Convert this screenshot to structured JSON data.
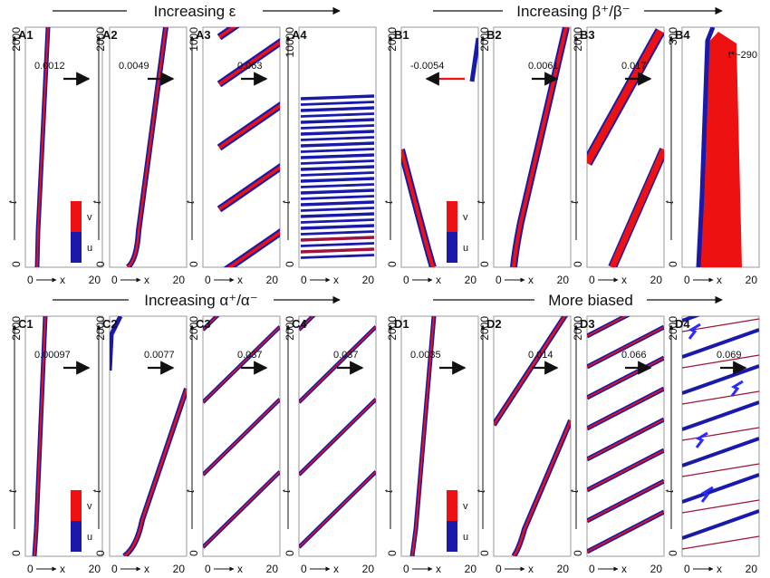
{
  "group_titles": {
    "A": "Increasing ε",
    "B": "Increasing β⁺/β⁻",
    "C": "Increasing α⁺/α⁻",
    "D": "More biased"
  },
  "axis": {
    "xlabel": "x",
    "ylabel": "t",
    "x_start": "0",
    "x_end": "20"
  },
  "legend": {
    "top": "v",
    "bottom": "u"
  },
  "colors": {
    "u": "#1a1aaa",
    "v": "#ee1111",
    "axis": "#111111",
    "frame": "#999999"
  },
  "annotation_B4": "t*~290",
  "panels": [
    {
      "id": "A1",
      "speed": "0.0012",
      "arrow": "right",
      "ytop": "2000",
      "legend": true
    },
    {
      "id": "A2",
      "speed": "0.0049",
      "arrow": "right",
      "ytop": "2000",
      "legend": false
    },
    {
      "id": "A3",
      "speed": "0.063",
      "arrow": "right",
      "ytop": "1000",
      "legend": false
    },
    {
      "id": "A4",
      "speed": "",
      "arrow": "none",
      "ytop": "10000",
      "legend": false
    },
    {
      "id": "B1",
      "speed": "-0.0054",
      "arrow": "left",
      "ytop": "2000",
      "legend": true
    },
    {
      "id": "B2",
      "speed": "0.0061",
      "arrow": "right",
      "ytop": "2000",
      "legend": false
    },
    {
      "id": "B3",
      "speed": "0.017",
      "arrow": "right",
      "ytop": "2000",
      "legend": false
    },
    {
      "id": "B4",
      "speed": "",
      "arrow": "none",
      "ytop": "300",
      "legend": false
    },
    {
      "id": "C1",
      "speed": "0.00097",
      "arrow": "right",
      "ytop": "2000",
      "legend": true
    },
    {
      "id": "C2",
      "speed": "0.0077",
      "arrow": "right",
      "ytop": "2000",
      "legend": false
    },
    {
      "id": "C3",
      "speed": "0.037",
      "arrow": "right",
      "ytop": "2000",
      "legend": false
    },
    {
      "id": "C4",
      "speed": "0.037",
      "arrow": "right",
      "ytop": "2000",
      "legend": false
    },
    {
      "id": "D1",
      "speed": "0.0035",
      "arrow": "right",
      "ytop": "2000",
      "legend": true
    },
    {
      "id": "D2",
      "speed": "0.014",
      "arrow": "right",
      "ytop": "2000",
      "legend": false
    },
    {
      "id": "D3",
      "speed": "0.066",
      "arrow": "right",
      "ytop": "2000",
      "legend": false
    },
    {
      "id": "D4",
      "speed": "0.069",
      "arrow": "right",
      "ytop": "2000",
      "legend": false
    }
  ],
  "chart_data": {
    "type": "line",
    "xlim": [
      0,
      20
    ],
    "series": [
      {
        "name": "u",
        "values": []
      },
      {
        "name": "v",
        "values": []
      }
    ]
  }
}
